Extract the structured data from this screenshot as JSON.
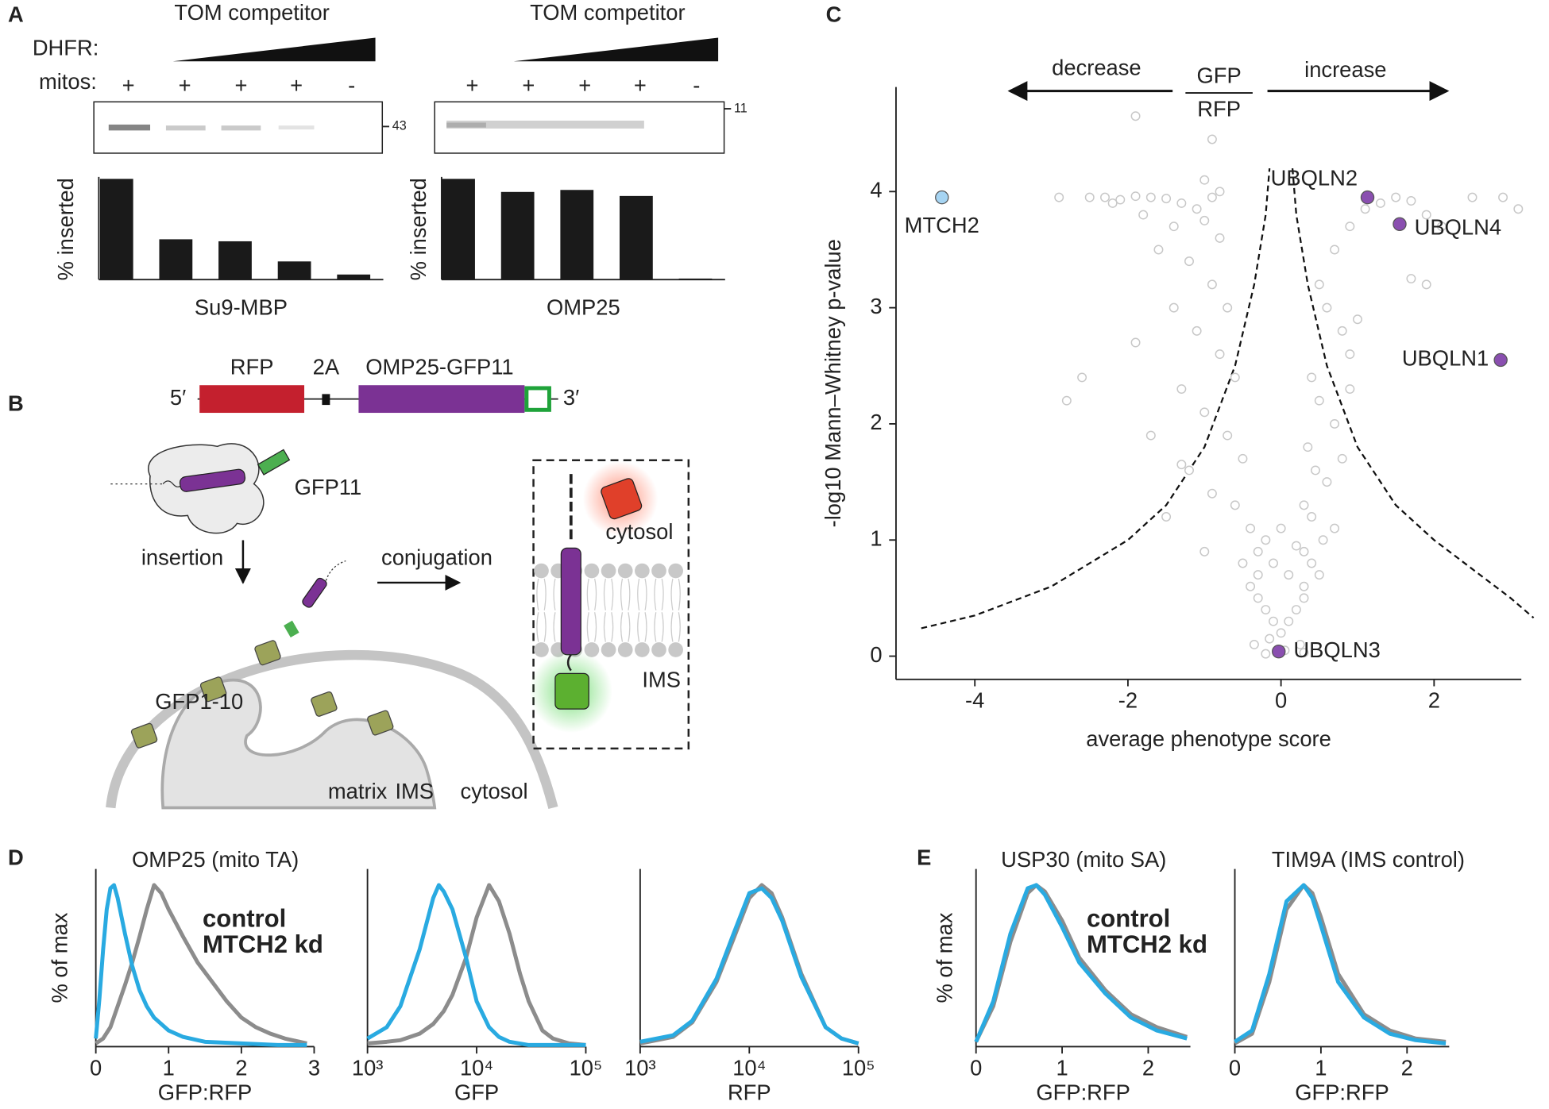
{
  "panel_labels": [
    "A",
    "B",
    "C",
    "D",
    "E"
  ],
  "gels": [
    {
      "title": "TOM competitor",
      "dhfr_label": "DHFR:",
      "mitos_label": "mitos:",
      "mitos": [
        "+",
        "+",
        "+",
        "+",
        "-"
      ],
      "marker": "43"
    },
    {
      "title": "TOM competitor",
      "mitos": [
        "+",
        "+",
        "+",
        "+",
        "-"
      ],
      "marker": "11"
    }
  ],
  "diagram": {
    "construct": {
      "five_prime": "5′",
      "three_prime": "3′",
      "rfp": "RFP",
      "linker": "2A",
      "fusion": "OMP25-GFP11"
    },
    "gfp11": "GFP11",
    "insertion": "insertion",
    "conjugation": "conjugation",
    "gfp1_10": "GFP1-10",
    "matrix": "matrix",
    "ims": "IMS",
    "cytosol": "cytosol",
    "inset_cytosol": "cytosol",
    "inset_ims": "IMS"
  },
  "chart_data": [
    {
      "type": "bar",
      "ylabel": "% inserted",
      "xlabel": "Su9-MBP",
      "categories": [
        null,
        null,
        null,
        null,
        null
      ],
      "values": [
        100,
        40,
        38,
        18,
        5
      ],
      "color": "#1a1a1a",
      "ylim": [
        0,
        100
      ]
    },
    {
      "type": "bar",
      "ylabel": "% inserted",
      "xlabel": "OMP25",
      "categories": [
        null,
        null,
        null,
        null,
        null
      ],
      "values": [
        100,
        87,
        89,
        83,
        1
      ],
      "color": "#1a1a1a",
      "ylim": [
        0,
        100
      ]
    },
    {
      "type": "scatter",
      "xlabel": "average phenotype score",
      "ylabel": "-log10 Mann–Whitney p-value",
      "annotations": {
        "left": "decrease",
        "right": "increase",
        "numerator": "GFP",
        "denominator": "RFP"
      },
      "xlim": [
        -5.03,
        3.14
      ],
      "ylim": [
        -0.2,
        4.9
      ],
      "xticks": [
        -4,
        -2,
        0,
        2
      ],
      "yticks": [
        0,
        1,
        2,
        3,
        4
      ],
      "series": [
        {
          "color": "#c8c8c8",
          "x": [
            -2.5,
            -2.3,
            -2.1,
            -1.9,
            -1.7,
            -1.5,
            -1.3,
            -1.1,
            -0.9,
            -2.2,
            -1.8,
            -1.4,
            -1.0,
            -0.8,
            0.7,
            0.9,
            1.1,
            1.3,
            1.5,
            1.7,
            1.9,
            2.1,
            2.5,
            2.9,
            3.1,
            -1.6,
            -1.2,
            -0.9,
            -0.7,
            -1.4,
            -1.1,
            -0.8,
            -0.6,
            -1.9,
            -1.3,
            -1.0,
            -0.7,
            -0.5,
            -2.6,
            -1.7,
            -1.2,
            -0.9,
            -0.6,
            -0.4,
            -2.8,
            -1.5,
            -1.0,
            -0.5,
            -0.3,
            0.5,
            0.6,
            0.8,
            0.9,
            1.0,
            0.4,
            0.5,
            0.7,
            0.9,
            0.35,
            0.45,
            0.6,
            0.8,
            0.3,
            0.4,
            0.55,
            0.7,
            0.3,
            0.4,
            0.5,
            -0.4,
            -0.3,
            -0.2,
            -0.1,
            0,
            0.1,
            0.2,
            0.3,
            -0.35,
            -0.15,
            0.05,
            0.25,
            -0.3,
            -0.1,
            0.1,
            0.3,
            -0.2,
            0,
            0.2,
            -1.9,
            -2.9,
            -1.0,
            -0.9,
            1.7,
            1.9,
            -0.8,
            -1.3,
            -0.2,
            0.3
          ],
          "values": [
            3.95,
            3.95,
            3.93,
            3.96,
            3.95,
            3.94,
            3.9,
            3.85,
            3.95,
            3.9,
            3.8,
            3.7,
            3.75,
            3.6,
            3.5,
            3.7,
            3.85,
            3.9,
            3.95,
            3.92,
            3.8,
            3.7,
            3.95,
            3.95,
            3.85,
            3.5,
            3.4,
            3.2,
            3.0,
            3.0,
            2.8,
            2.6,
            2.4,
            2.7,
            2.3,
            2.1,
            1.9,
            1.7,
            2.4,
            1.9,
            1.6,
            1.4,
            1.3,
            1.1,
            2.2,
            1.2,
            0.9,
            0.8,
            0.7,
            3.2,
            3.0,
            2.8,
            2.6,
            2.9,
            2.4,
            2.2,
            2.0,
            2.3,
            1.8,
            1.6,
            1.5,
            1.7,
            1.3,
            1.2,
            1.0,
            1.1,
            0.9,
            0.8,
            0.7,
            0.6,
            0.5,
            0.4,
            0.3,
            0.2,
            0.3,
            0.4,
            0.5,
            0.1,
            0.15,
            0.05,
            0.1,
            0.9,
            0.8,
            0.7,
            0.6,
            1.0,
            1.1,
            0.95,
            4.65,
            3.95,
            4.1,
            4.45,
            3.25,
            3.2,
            4.0,
            1.65,
            0.02,
            0.03
          ]
        },
        {
          "color": "#a6d4f2",
          "x": [
            -4.43
          ],
          "values": [
            3.95
          ],
          "labels": [
            "MTCH2"
          ]
        },
        {
          "color": "#8a4fb0",
          "x": [
            1.13,
            1.55,
            2.87,
            -0.03
          ],
          "values": [
            3.95,
            3.72,
            2.55,
            0.04
          ],
          "labels": [
            "UBQLN2",
            "UBQLN4",
            "UBQLN1",
            "UBQLN3"
          ]
        }
      ],
      "threshold_curves": [
        {
          "x": [
            -4.7,
            -4,
            -3,
            -2,
            -1.5,
            -1,
            -0.6,
            -0.35,
            -0.2,
            -0.15
          ],
          "values": [
            0.24,
            0.35,
            0.6,
            1.0,
            1.3,
            1.8,
            2.5,
            3.2,
            3.8,
            4.2
          ]
        },
        {
          "x": [
            0.15,
            0.2,
            0.35,
            0.6,
            1,
            1.5,
            2,
            3,
            3.3
          ],
          "values": [
            4.2,
            3.8,
            3.2,
            2.5,
            1.8,
            1.3,
            1.0,
            0.5,
            0.33
          ]
        }
      ]
    },
    {
      "type": "line",
      "title": "OMP25 (mito TA)",
      "xlabel": "GFP:RFP",
      "ylabel": "% of max",
      "xlim": [
        0,
        3
      ],
      "xticks": [
        0,
        1,
        2,
        3
      ],
      "ylim": [
        0,
        110
      ],
      "legend": "upper right",
      "series": [
        {
          "name": "control",
          "color": "#8c8c8c",
          "x": [
            0,
            0.1,
            0.2,
            0.3,
            0.4,
            0.5,
            0.6,
            0.7,
            0.8,
            0.9,
            1.0,
            1.2,
            1.4,
            1.6,
            1.8,
            2.0,
            2.2,
            2.4,
            2.6,
            2.8,
            2.9
          ],
          "values": [
            2,
            5,
            12,
            25,
            38,
            52,
            68,
            85,
            100,
            95,
            85,
            68,
            52,
            40,
            28,
            18,
            12,
            8,
            5,
            3,
            2
          ]
        },
        {
          "name": "MTCH2 kd",
          "color": "#29aae1",
          "x": [
            0,
            0.05,
            0.1,
            0.15,
            0.2,
            0.25,
            0.3,
            0.4,
            0.5,
            0.6,
            0.7,
            0.8,
            1.0,
            1.2,
            1.5,
            2.0,
            2.5,
            2.9
          ],
          "values": [
            5,
            30,
            60,
            85,
            98,
            100,
            92,
            70,
            50,
            35,
            25,
            18,
            10,
            6,
            3,
            2,
            1,
            1
          ]
        }
      ]
    },
    {
      "type": "line",
      "xlabel": "GFP",
      "xscale": "log",
      "xlim": [
        1000,
        100000
      ],
      "ylim": [
        0,
        110
      ],
      "xticks": [
        {
          "value": 1000,
          "label": "10³"
        },
        {
          "value": 10000,
          "label": "10⁴"
        },
        {
          "value": 100000,
          "label": "10⁵"
        }
      ],
      "series": [
        {
          "color": "#8c8c8c",
          "x": [
            1000,
            1500,
            2000,
            3000,
            4000,
            5000,
            6000,
            8000,
            10000,
            13000,
            16000,
            20000,
            25000,
            30000,
            40000,
            50000,
            70000,
            100000
          ],
          "values": [
            2,
            3,
            4,
            8,
            14,
            22,
            32,
            55,
            80,
            100,
            90,
            70,
            45,
            28,
            10,
            5,
            2,
            1
          ]
        },
        {
          "color": "#29aae1",
          "x": [
            1000,
            1500,
            2000,
            3000,
            4000,
            4500,
            5000,
            6000,
            8000,
            10000,
            13000,
            16000,
            20000,
            30000,
            50000,
            100000
          ],
          "values": [
            5,
            12,
            25,
            60,
            92,
            100,
            96,
            85,
            55,
            28,
            12,
            6,
            3,
            1,
            1,
            1
          ]
        }
      ]
    },
    {
      "type": "line",
      "xlabel": "RFP",
      "xscale": "log",
      "xlim": [
        1000,
        100000
      ],
      "ylim": [
        0,
        110
      ],
      "xticks": [
        {
          "value": 1000,
          "label": "10³"
        },
        {
          "value": 10000,
          "label": "10⁴"
        },
        {
          "value": 100000,
          "label": "10⁵"
        }
      ],
      "series": [
        {
          "color": "#8c8c8c",
          "x": [
            1000,
            2000,
            3000,
            5000,
            7000,
            10000,
            13000,
            16000,
            20000,
            30000,
            50000,
            70000,
            100000
          ],
          "values": [
            2,
            6,
            15,
            40,
            65,
            92,
            100,
            95,
            80,
            45,
            12,
            5,
            2
          ]
        },
        {
          "color": "#29aae1",
          "x": [
            1000,
            2000,
            3000,
            5000,
            7000,
            10000,
            13000,
            16000,
            20000,
            30000,
            50000,
            70000,
            100000
          ],
          "values": [
            3,
            7,
            16,
            42,
            68,
            95,
            98,
            92,
            78,
            43,
            12,
            5,
            2
          ]
        }
      ]
    },
    {
      "type": "line",
      "title": "USP30 (mito SA)",
      "xlabel": "GFP:RFP",
      "ylabel": "% of max",
      "xlim": [
        0,
        2.49
      ],
      "xticks": [
        0,
        1,
        2
      ],
      "ylim": [
        0,
        110
      ],
      "legend": "upper right",
      "series": [
        {
          "name": "control",
          "color": "#8c8c8c",
          "x": [
            0,
            0.2,
            0.4,
            0.6,
            0.7,
            0.8,
            1.0,
            1.2,
            1.5,
            1.8,
            2.1,
            2.45
          ],
          "values": [
            3,
            25,
            65,
            95,
            100,
            96,
            78,
            55,
            35,
            20,
            12,
            6
          ]
        },
        {
          "name": "MTCH2 kd",
          "color": "#29aae1",
          "x": [
            0,
            0.2,
            0.4,
            0.6,
            0.7,
            0.8,
            1.0,
            1.2,
            1.5,
            1.8,
            2.1,
            2.45
          ],
          "values": [
            3,
            28,
            70,
            98,
            100,
            94,
            74,
            52,
            33,
            18,
            10,
            5
          ]
        }
      ]
    },
    {
      "type": "line",
      "title": "TIM9A (IMS control)",
      "xlabel": "GFP:RFP",
      "xlim": [
        0,
        2.49
      ],
      "xticks": [
        0,
        1,
        2
      ],
      "ylim": [
        0,
        110
      ],
      "series": [
        {
          "color": "#8c8c8c",
          "x": [
            0,
            0.2,
            0.4,
            0.6,
            0.8,
            0.9,
            1.0,
            1.2,
            1.5,
            1.8,
            2.1,
            2.45
          ],
          "values": [
            2,
            8,
            40,
            85,
            100,
            95,
            80,
            45,
            20,
            10,
            5,
            3
          ]
        },
        {
          "color": "#29aae1",
          "x": [
            0,
            0.2,
            0.4,
            0.6,
            0.8,
            0.9,
            1.0,
            1.2,
            1.5,
            1.8,
            2.1,
            2.45
          ],
          "values": [
            3,
            10,
            45,
            90,
            100,
            92,
            75,
            40,
            18,
            8,
            4,
            2
          ]
        }
      ]
    }
  ]
}
